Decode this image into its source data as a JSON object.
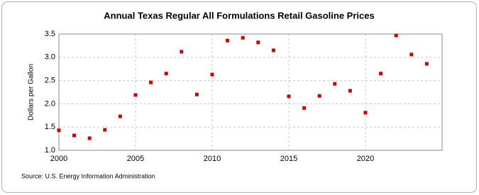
{
  "chart_data": {
    "type": "scatter",
    "title": "Annual Texas Regular All Formulations Retail Gasoline Prices",
    "ylabel": "Dollars per Gallon",
    "source": "Source: U.S. Energy Information Administration",
    "x": [
      2000,
      2001,
      2002,
      2003,
      2004,
      2005,
      2006,
      2007,
      2008,
      2009,
      2010,
      2011,
      2012,
      2013,
      2014,
      2015,
      2016,
      2017,
      2018,
      2019,
      2020,
      2021,
      2022,
      2023,
      2024
    ],
    "series": [
      {
        "name": "Texas Regular All Formulations Retail Gasoline Prices",
        "color": "#cc0000",
        "values": [
          1.43,
          1.32,
          1.26,
          1.44,
          1.73,
          2.19,
          2.46,
          2.65,
          3.12,
          2.2,
          2.63,
          3.36,
          3.42,
          3.32,
          3.15,
          2.16,
          1.91,
          2.17,
          2.43,
          2.28,
          1.81,
          2.65,
          3.47,
          3.06,
          2.86
        ]
      }
    ],
    "xlim": [
      2000,
      2025
    ],
    "xticks": [
      2000,
      2005,
      2010,
      2015,
      2020
    ],
    "ylim": [
      1.0,
      3.5
    ],
    "yticks": [
      {
        "value": 1.0,
        "label": "1.0"
      },
      1.5,
      {
        "value": 2.0,
        "label": "2.0"
      },
      2.5,
      {
        "value": 3.0,
        "label": "3.0"
      },
      3.5
    ],
    "grid": true
  }
}
